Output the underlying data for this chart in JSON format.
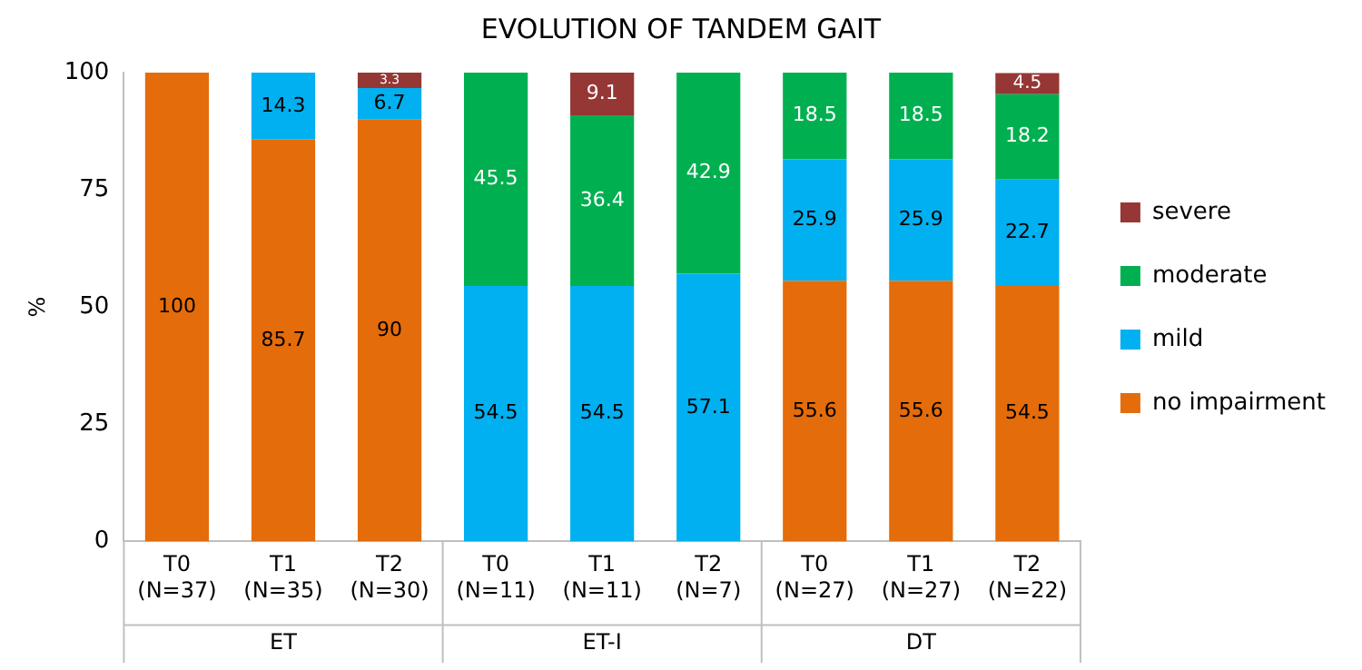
{
  "chart_data": {
    "type": "bar",
    "title": "EVOLUTION OF TANDEM GAIT",
    "ylabel": "%",
    "categories": [
      "T0 (N=37)",
      "T1 (N=35)",
      "T2 (N=30)",
      "T0 (N=11)",
      "T1 (N=11)",
      "T2 (N=7)",
      "T0 (N=27)",
      "T1 (N=27)",
      "T2 (N=22)"
    ],
    "annotations": [
      "ET",
      "ET-I",
      "DT"
    ],
    "stacked": true,
    "data_labels": true,
    "legend": "right",
    "grid": false,
    "ylim": [
      0,
      100
    ],
    "yticks": [
      0,
      25,
      50,
      75,
      100
    ],
    "series": [
      {
        "name": "no impairment",
        "color": "#e46c0a",
        "values": [
          100,
          85.7,
          90,
          null,
          null,
          null,
          55.6,
          55.6,
          54.5
        ]
      },
      {
        "name": "mild",
        "color": "#00b0f0",
        "values": [
          null,
          14.3,
          6.7,
          54.5,
          54.5,
          57.1,
          25.9,
          25.9,
          22.7
        ]
      },
      {
        "name": "moderate",
        "color": "#00b050",
        "values": [
          null,
          null,
          null,
          45.5,
          36.4,
          42.9,
          18.5,
          18.5,
          18.2
        ]
      },
      {
        "name": "severe",
        "color": "#953735",
        "values": [
          null,
          null,
          3.3,
          null,
          9.1,
          null,
          null,
          null,
          4.5
        ]
      }
    ]
  }
}
